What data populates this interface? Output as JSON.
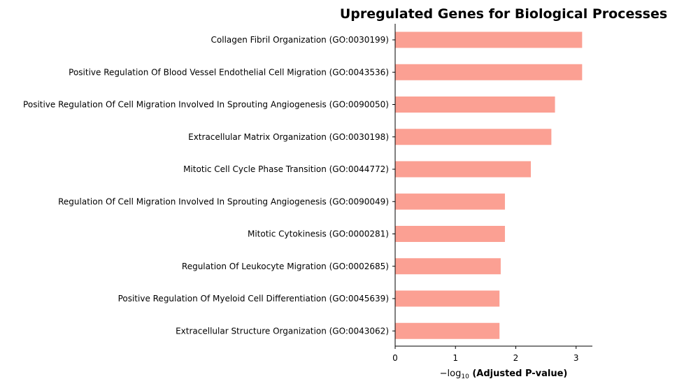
{
  "chart_data": {
    "type": "bar",
    "orientation": "horizontal",
    "title": "Upregulated Genes for Biological Processes",
    "xlabel_prefix": "−log",
    "xlabel_sub": "10",
    "xlabel_main": " (Adjusted P-value)",
    "bar_color": "#fba093",
    "xlim": [
      0,
      3.27
    ],
    "xticks": [
      0,
      1,
      2,
      3
    ],
    "categories": [
      "Collagen Fibril Organization (GO:0030199)",
      "Positive Regulation Of Blood Vessel Endothelial Cell Migration (GO:0043536)",
      "Positive Regulation Of Cell Migration Involved In Sprouting Angiogenesis (GO:0090050)",
      "Extracellular Matrix Organization (GO:0030198)",
      "Mitotic Cell Cycle Phase Transition (GO:0044772)",
      "Regulation Of Cell Migration Involved In Sprouting Angiogenesis (GO:0090049)",
      "Mitotic Cytokinesis (GO:0000281)",
      "Regulation Of Leukocyte Migration (GO:0002685)",
      "Positive Regulation Of Myeloid Cell Differentiation (GO:0045639)",
      "Extracellular Structure Organization (GO:0043062)"
    ],
    "values": [
      3.1,
      3.1,
      2.65,
      2.59,
      2.25,
      1.82,
      1.82,
      1.75,
      1.73,
      1.73
    ]
  }
}
